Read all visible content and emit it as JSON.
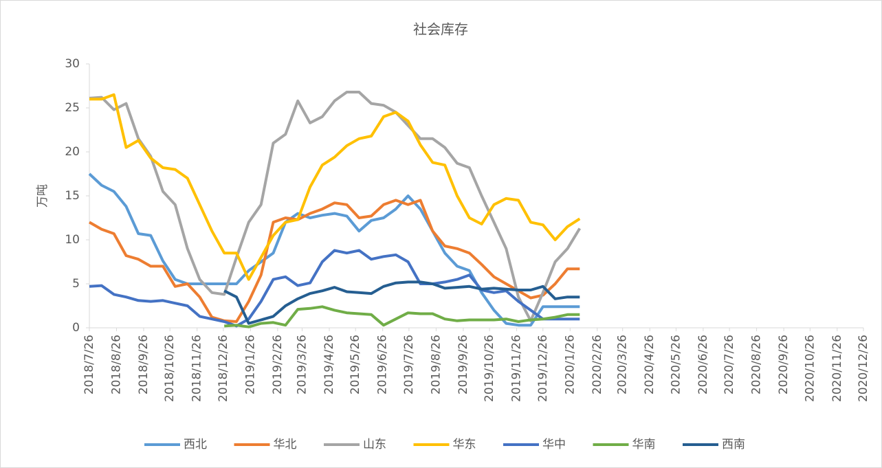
{
  "chart_data": {
    "type": "line",
    "title": "社会库存",
    "y_label": "万吨",
    "x": [
      "2018/7/26",
      "2018/8/9",
      "2018/8/23",
      "2018/9/6",
      "2018/9/20",
      "2018/10/4",
      "2018/10/18",
      "2018/11/1",
      "2018/11/15",
      "2018/11/29",
      "2018/12/13",
      "2018/12/27",
      "2019/1/10",
      "2019/1/24",
      "2019/2/7",
      "2019/2/21",
      "2019/3/7",
      "2019/3/21",
      "2019/4/4",
      "2019/4/18",
      "2019/5/2",
      "2019/5/16",
      "2019/5/30",
      "2019/6/13",
      "2019/6/27",
      "2019/7/11",
      "2019/7/25",
      "2019/8/8",
      "2019/8/22",
      "2019/9/5",
      "2019/9/19",
      "2019/10/3",
      "2019/10/17",
      "2019/10/31",
      "2019/11/14",
      "2019/11/28",
      "2019/12/12",
      "2019/12/26",
      "2020/1/9",
      "2020/1/23",
      "2020/2/6"
    ],
    "xlim": [
      "2018/7/26",
      "2020/12/26"
    ],
    "xticks": [
      "2018/7/26",
      "2018/8/26",
      "2018/9/26",
      "2018/10/26",
      "2018/11/26",
      "2018/12/26",
      "2019/1/26",
      "2019/2/26",
      "2019/3/26",
      "2019/4/26",
      "2019/5/26",
      "2019/6/26",
      "2019/7/26",
      "2019/8/26",
      "2019/9/26",
      "2019/10/26",
      "2019/11/26",
      "2019/12/26",
      "2020/1/26",
      "2020/2/26",
      "2020/3/26",
      "2020/4/26",
      "2020/5/26",
      "2020/6/26",
      "2020/7/26",
      "2020/8/26",
      "2020/9/26",
      "2020/10/26",
      "2020/11/26",
      "2020/12/26"
    ],
    "ylim": [
      0,
      30
    ],
    "yticks": [
      0,
      5,
      10,
      15,
      20,
      25,
      30
    ],
    "series": [
      {
        "name": "西北",
        "color": "#5b9bd5",
        "values": [
          17.5,
          16.2,
          15.5,
          13.8,
          10.7,
          10.5,
          7.6,
          5.5,
          5.0,
          5.0,
          5.0,
          5.0,
          5.0,
          6.5,
          7.5,
          8.5,
          12,
          13,
          12.5,
          12.8,
          13,
          12.7,
          11,
          12.2,
          12.5,
          13.5,
          15,
          13.5,
          11,
          8.5,
          7,
          6.5,
          4,
          2,
          0.5,
          0.3,
          0.3,
          2.4,
          2.4,
          2.4,
          2.4
        ]
      },
      {
        "name": "华北",
        "color": "#ed7d31",
        "values": [
          12,
          11.2,
          10.7,
          8.2,
          7.8,
          7.0,
          7.0,
          4.7,
          5.0,
          3.5,
          1.2,
          0.8,
          0.7,
          3,
          6,
          12,
          12.5,
          12.3,
          13,
          13.5,
          14.2,
          14,
          12.5,
          12.7,
          14,
          14.5,
          14,
          14.5,
          11,
          9.3,
          9,
          8.5,
          7.2,
          5.8,
          5,
          4.2,
          3.4,
          3.7,
          5,
          6.7,
          6.7
        ]
      },
      {
        "name": "山东",
        "color": "#a5a5a5",
        "values": [
          26.1,
          26.2,
          24.8,
          25.5,
          21.5,
          19.5,
          15.5,
          14,
          9,
          5.5,
          4,
          3.8,
          8,
          12,
          14,
          21,
          22,
          25.8,
          23.3,
          24,
          25.8,
          26.8,
          26.8,
          25.5,
          25.3,
          24.5,
          23,
          21.5,
          21.5,
          20.5,
          18.7,
          18.2,
          15,
          12,
          9,
          3.5,
          0.8,
          4,
          7.5,
          9,
          11.3
        ]
      },
      {
        "name": "华东",
        "color": "#ffc000",
        "values": [
          26,
          26,
          26.5,
          20.5,
          21.3,
          19.3,
          18.2,
          18,
          17,
          14,
          11,
          8.5,
          8.5,
          5.5,
          8,
          10.5,
          12,
          12.3,
          16,
          18.5,
          19.4,
          20.7,
          21.5,
          21.8,
          24,
          24.5,
          23.5,
          20.8,
          18.8,
          18.5,
          15,
          12.5,
          11.8,
          14,
          14.7,
          14.5,
          12,
          11.7,
          10,
          11.5,
          12.4
        ]
      },
      {
        "name": "华中",
        "color": "#4472c4",
        "values": [
          4.7,
          4.8,
          3.8,
          3.5,
          3.1,
          3,
          3.1,
          2.8,
          2.5,
          1.3,
          1,
          0.7,
          0.2,
          1,
          3,
          5.5,
          5.8,
          4.8,
          5.1,
          7.5,
          8.8,
          8.5,
          8.8,
          7.8,
          8.1,
          8.3,
          7.5,
          5,
          5,
          5.2,
          5.5,
          6,
          4.3,
          4,
          4.2,
          3,
          2,
          1,
          1,
          1,
          1
        ]
      },
      {
        "name": "华南",
        "color": "#70ad47",
        "values": [
          null,
          null,
          null,
          null,
          null,
          null,
          null,
          null,
          null,
          null,
          null,
          0.2,
          0.3,
          0.1,
          0.5,
          0.6,
          0.3,
          2.1,
          2.2,
          2.4,
          2,
          1.7,
          1.6,
          1.5,
          0.3,
          1,
          1.7,
          1.6,
          1.6,
          1,
          0.8,
          0.9,
          0.9,
          0.9,
          1,
          0.7,
          0.9,
          1,
          1.2,
          1.5,
          1.5
        ]
      },
      {
        "name": "西南",
        "color": "#255e91",
        "values": [
          null,
          null,
          null,
          null,
          null,
          null,
          null,
          null,
          null,
          null,
          null,
          4.2,
          3.5,
          0.5,
          0.9,
          1.3,
          2.5,
          3.3,
          3.9,
          4.2,
          4.6,
          4.1,
          4,
          3.9,
          4.7,
          5.1,
          5.2,
          5.2,
          5,
          4.5,
          4.6,
          4.7,
          4.4,
          4.5,
          4.4,
          4.3,
          4.3,
          4.7,
          3.3,
          3.5,
          3.5
        ]
      }
    ]
  }
}
